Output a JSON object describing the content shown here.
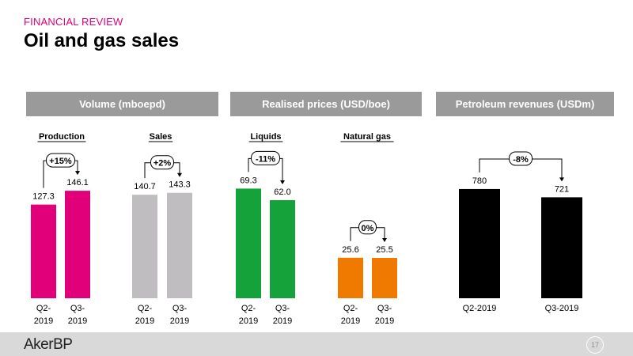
{
  "header": {
    "section": "FINANCIAL REVIEW",
    "title": "Oil and gas sales",
    "accent_color": "#e2007a"
  },
  "panels": [
    {
      "title": "Volume (mboepd)"
    },
    {
      "title": "Realised prices (USD/boe)"
    },
    {
      "title": "Petroleum revenues (USDm)"
    }
  ],
  "footer": {
    "logo": "AkerBP",
    "page": "17"
  },
  "chart_data": [
    {
      "type": "bar",
      "group_label": "Production",
      "categories": [
        "Q2-2019",
        "Q3-2019"
      ],
      "values": [
        127.3,
        146.1
      ],
      "value_labels": [
        "127.3",
        "146.1"
      ],
      "change_label": "+15%",
      "color": "#e2007a"
    },
    {
      "type": "bar",
      "group_label": "Sales",
      "categories": [
        "Q2-2019",
        "Q3-2019"
      ],
      "values": [
        140.7,
        143.3
      ],
      "value_labels": [
        "140.7",
        "143.3"
      ],
      "change_label": "+2%",
      "color": "#bfbdbf"
    },
    {
      "type": "bar",
      "group_label": "Liquids",
      "categories": [
        "Q2-2019",
        "Q3-2019"
      ],
      "values": [
        69.3,
        62.0
      ],
      "value_labels": [
        "69.3",
        "62.0"
      ],
      "change_label": "-11%",
      "color": "#16a23a"
    },
    {
      "type": "bar",
      "group_label": "Natural gas",
      "categories": [
        "Q2-2019",
        "Q3-2019"
      ],
      "values": [
        25.6,
        25.5
      ],
      "value_labels": [
        "25.6",
        "25.5"
      ],
      "change_label": "0%",
      "color": "#f07a00"
    },
    {
      "type": "bar",
      "group_label": "",
      "categories": [
        "Q2-2019",
        "Q3-2019"
      ],
      "values": [
        780,
        721
      ],
      "value_labels": [
        "780",
        "721"
      ],
      "change_label": "-8%",
      "color": "#000000"
    }
  ]
}
